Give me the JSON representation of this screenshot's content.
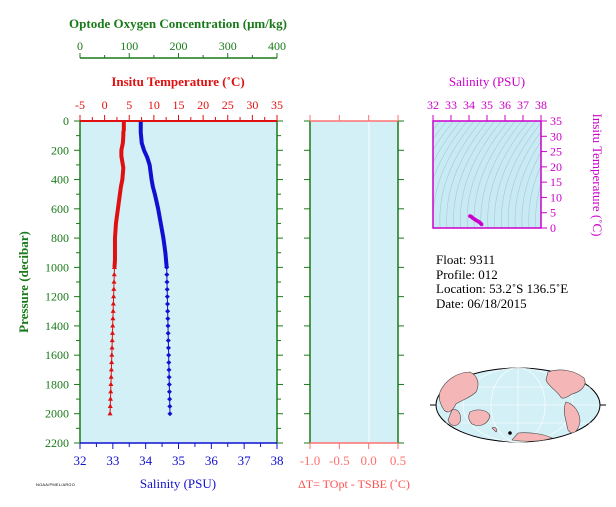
{
  "colors": {
    "green": "#1a7a1a",
    "red": "#e01010",
    "blue": "#1010d0",
    "magenta": "#cc00cc",
    "panel_bg": "#d4f0f7",
    "pink": "#ff7070",
    "ts_panel_bg": "#c8eaf4"
  },
  "float_info": {
    "float": "Float:  9311",
    "profile": "Profile:  012",
    "location": "Location:  53.2˚S  136.5˚E",
    "date": "Date:  06/18/2015"
  },
  "footer_text": "NOAA/PMEL/ARGO",
  "chart_data": [
    {
      "type": "line",
      "title": "",
      "oxygen_axis": {
        "label": "Optode Oxygen Concentration (μm/kg)",
        "range": [
          0,
          400
        ],
        "ticks": [
          "0",
          "100",
          "200",
          "300",
          "400"
        ]
      },
      "temperature_axis": {
        "label": "Insitu Temperature (˚C)",
        "range": [
          -5,
          35
        ],
        "ticks": [
          "-5",
          "0",
          "5",
          "10",
          "15",
          "20",
          "25",
          "30",
          "35"
        ]
      },
      "salinity_axis": {
        "label": "Salinity (PSU)",
        "range": [
          32,
          38
        ],
        "ticks": [
          "32",
          "33",
          "34",
          "35",
          "36",
          "37",
          "38"
        ]
      },
      "pressure_axis": {
        "label": "Pressure (decibar)",
        "range": [
          0,
          2200
        ],
        "ticks": [
          "0",
          "200",
          "400",
          "600",
          "800",
          "1000",
          "1200",
          "1400",
          "1600",
          "1800",
          "2000",
          "2200"
        ]
      },
      "series": [
        {
          "color": "red",
          "variable": "temperature",
          "x": [
            3.9,
            3.9,
            3.9,
            3.9,
            3.8,
            3.8,
            3.7,
            3.4,
            3.4,
            3.6,
            3.8,
            3.7,
            3.6,
            3.3,
            3.1,
            2.9,
            2.7,
            2.5,
            2.3,
            2.2,
            2.1,
            2.1,
            2.1,
            2.1,
            2.0,
            1.9,
            1.9,
            1.9,
            1.9,
            1.8,
            1.7,
            1.7,
            1.7,
            1.6,
            1.6,
            1.5,
            1.5,
            1.4,
            1.4,
            1.4,
            1.3,
            1.3,
            1.3,
            1.3,
            1.2,
            1.2,
            1.2,
            1.1,
            1.1,
            1.1,
            1.0,
            1.0
          ],
          "y": [
            5,
            20,
            40,
            60,
            80,
            100,
            150,
            200,
            240,
            280,
            320,
            360,
            400,
            450,
            500,
            550,
            600,
            650,
            700,
            750,
            800,
            850,
            900,
            950,
            1000,
            1050,
            1100,
            1150,
            1200,
            1250,
            1300,
            1350,
            1400,
            1450,
            1500,
            1550,
            1600,
            1650,
            1700,
            1750,
            1800,
            1850,
            1900,
            1950,
            2000,
            1980,
            1960,
            1940,
            1920,
            1900,
            1880,
            1860
          ]
        },
        {
          "color": "blue",
          "variable": "salinity",
          "x": [
            33.85,
            33.85,
            33.85,
            33.85,
            33.85,
            33.86,
            33.88,
            33.95,
            34.05,
            34.12,
            34.15,
            34.18,
            34.22,
            34.28,
            34.33,
            34.38,
            34.42,
            34.46,
            34.5,
            34.54,
            34.57,
            34.6,
            34.62,
            34.64,
            34.65,
            34.66,
            34.67,
            34.68,
            34.69,
            34.7,
            34.7,
            34.71,
            34.71,
            34.72,
            34.72,
            34.73,
            34.73,
            34.73,
            34.74,
            34.74,
            34.74
          ],
          "y": [
            5,
            20,
            40,
            60,
            80,
            100,
            150,
            200,
            250,
            300,
            350,
            400,
            450,
            500,
            550,
            600,
            650,
            700,
            750,
            800,
            850,
            900,
            950,
            1000,
            1050,
            1100,
            1150,
            1200,
            1250,
            1300,
            1350,
            1400,
            1450,
            1500,
            1550,
            1600,
            1650,
            1700,
            1800,
            1900,
            2000
          ]
        }
      ]
    },
    {
      "type": "line",
      "title": "",
      "xlabel": "ΔT= TOpt - TSBE (˚C)",
      "xlim": [
        -1.0,
        0.5
      ],
      "ticks": [
        "-1.0",
        "-0.5",
        "0.0",
        "0.5"
      ],
      "series": []
    },
    {
      "type": "scatter",
      "title": "",
      "xlabel": "Salinity (PSU)",
      "ylabel": "Insitu Temperature (˚C)",
      "xlim": [
        32,
        38
      ],
      "ylim": [
        0,
        35
      ],
      "xticks": [
        "32",
        "33",
        "34",
        "35",
        "36",
        "37",
        "38"
      ],
      "yticks": [
        "0",
        "5",
        "10",
        "15",
        "20",
        "25",
        "30",
        "35"
      ],
      "series": [
        {
          "color": "magenta",
          "x": [
            34.05,
            34.1,
            34.15,
            34.2,
            34.3,
            34.4,
            34.5,
            34.55,
            34.6,
            34.65,
            34.7
          ],
          "y": [
            3.9,
            3.8,
            3.6,
            3.3,
            2.9,
            2.5,
            2.2,
            2.0,
            1.8,
            1.5,
            1.2
          ]
        }
      ]
    }
  ]
}
